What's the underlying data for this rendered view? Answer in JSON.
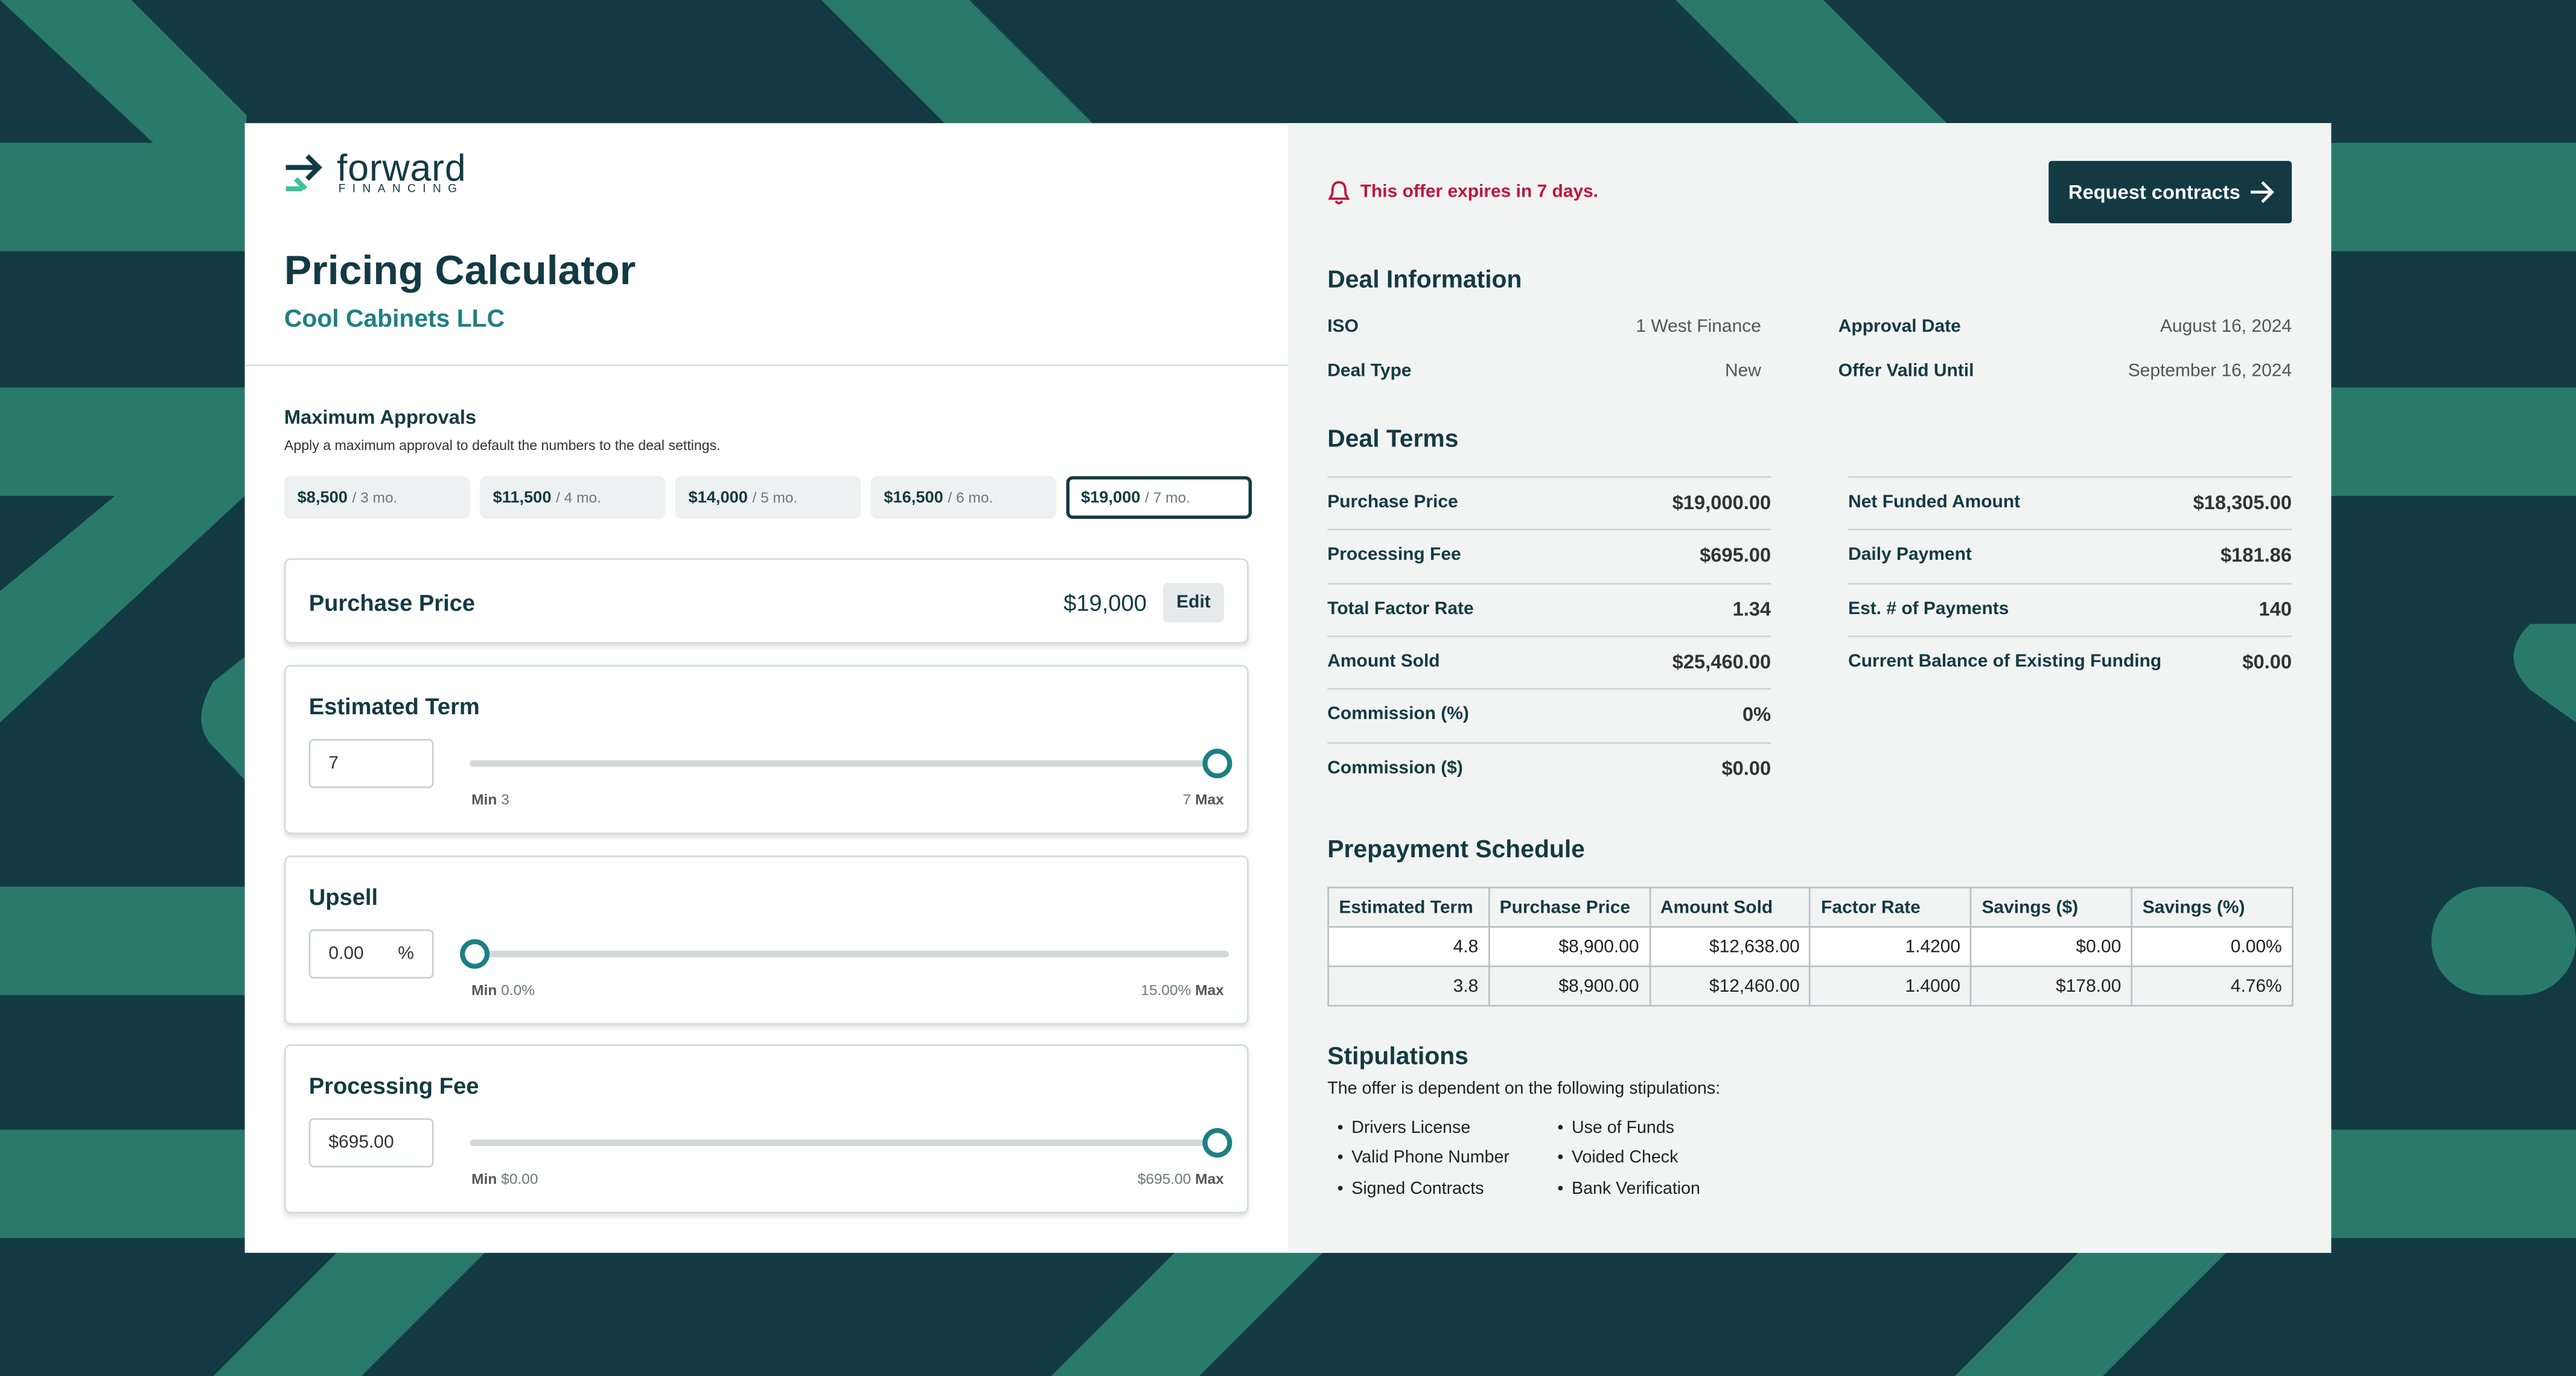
{
  "logo": {
    "name": "forward",
    "tagline": "FINANCING"
  },
  "header": {
    "title": "Pricing Calculator",
    "company": "Cool Cabinets LLC"
  },
  "max_approvals": {
    "title": "Maximum Approvals",
    "description": "Apply a maximum approval to default the numbers to the deal settings.",
    "options": [
      {
        "amount": "$8,500",
        "term": "/ 3 mo."
      },
      {
        "amount": "$11,500",
        "term": "/ 4 mo."
      },
      {
        "amount": "$14,000",
        "term": "/ 5 mo."
      },
      {
        "amount": "$16,500",
        "term": "/ 6 mo."
      },
      {
        "amount": "$19,000",
        "term": "/ 7 mo."
      }
    ]
  },
  "purchase_price": {
    "label": "Purchase Price",
    "value": "$19,000",
    "edit": "Edit"
  },
  "sliders": [
    {
      "label": "Estimated Term",
      "input": "7",
      "min_label": "Min",
      "min": "3",
      "max": "7",
      "max_label": "Max"
    },
    {
      "label": "Upsell",
      "input": "0.00",
      "unit": "%",
      "min_label": "Min",
      "min": "0.0%",
      "max": "15.00%",
      "max_label": "Max"
    },
    {
      "label": "Processing Fee",
      "input": "$695.00",
      "min_label": "Min",
      "min": "$0.00",
      "max": "$695.00",
      "max_label": "Max"
    }
  ],
  "alert": "This offer expires in 7 days.",
  "button": "Request contracts",
  "deal_information": {
    "title": "Deal Information",
    "left": [
      [
        "ISO",
        "1 West Finance"
      ],
      [
        "Deal Type",
        "New"
      ]
    ],
    "right": [
      [
        "Approval Date",
        "August 16, 2024"
      ],
      [
        "Offer Valid Until",
        "September 16, 2024"
      ]
    ]
  },
  "deal_terms": {
    "title": "Deal Terms",
    "left": [
      [
        "Purchase Price",
        "$19,000.00"
      ],
      [
        "Processing Fee",
        "$695.00"
      ],
      [
        "Total Factor Rate",
        "1.34"
      ],
      [
        "Amount Sold",
        "$25,460.00"
      ],
      [
        "Commission (%)",
        "0%"
      ],
      [
        "Commission ($)",
        "$0.00"
      ]
    ],
    "right": [
      [
        "Net Funded Amount",
        "$18,305.00"
      ],
      [
        "Daily Payment",
        "$181.86"
      ],
      [
        "Est. # of Payments",
        "140"
      ],
      [
        "Current Balance of Existing Funding",
        "$0.00"
      ]
    ]
  },
  "prepayment": {
    "title": "Prepayment Schedule",
    "headers": [
      "Estimated Term",
      "Purchase Price",
      "Amount Sold",
      "Factor Rate",
      "Savings ($)",
      "Savings (%)"
    ],
    "rows": [
      [
        "4.8",
        "$8,900.00",
        "$12,638.00",
        "1.4200",
        "$0.00",
        "0.00%"
      ],
      [
        "3.8",
        "$8,900.00",
        "$12,460.00",
        "1.4000",
        "$178.00",
        "4.76%"
      ]
    ]
  },
  "stipulations": {
    "title": "Stipulations",
    "description": "The offer is dependent on the following stipulations:",
    "columns": [
      [
        "Drivers License",
        "Valid Phone Number",
        "Signed Contracts"
      ],
      [
        "Use of Funds",
        "Voided Check",
        "Bank Verification"
      ]
    ]
  }
}
